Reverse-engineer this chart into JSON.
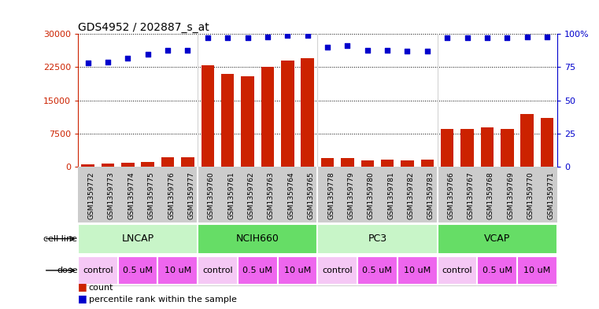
{
  "title": "GDS4952 / 202887_s_at",
  "samples": [
    "GSM1359772",
    "GSM1359773",
    "GSM1359774",
    "GSM1359775",
    "GSM1359776",
    "GSM1359777",
    "GSM1359760",
    "GSM1359761",
    "GSM1359762",
    "GSM1359763",
    "GSM1359764",
    "GSM1359765",
    "GSM1359778",
    "GSM1359779",
    "GSM1359780",
    "GSM1359781",
    "GSM1359782",
    "GSM1359783",
    "GSM1359766",
    "GSM1359767",
    "GSM1359768",
    "GSM1359769",
    "GSM1359770",
    "GSM1359771"
  ],
  "counts": [
    500,
    700,
    1000,
    1100,
    2200,
    2200,
    23000,
    21000,
    20500,
    22500,
    24000,
    24500,
    2000,
    2000,
    1500,
    1600,
    1400,
    1700,
    8500,
    8500,
    9000,
    8500,
    12000,
    11000
  ],
  "percentile_ranks": [
    78,
    79,
    82,
    85,
    88,
    88,
    97,
    97,
    97,
    98,
    99,
    99,
    90,
    91,
    88,
    88,
    87,
    87,
    97,
    97,
    97,
    97,
    98,
    98
  ],
  "cell_lines": [
    {
      "label": "LNCAP",
      "start": 0,
      "end": 6,
      "color": "#c8f5c8"
    },
    {
      "label": "NCIH660",
      "start": 6,
      "end": 12,
      "color": "#66dd66"
    },
    {
      "label": "PC3",
      "start": 12,
      "end": 18,
      "color": "#c8f5c8"
    },
    {
      "label": "VCAP",
      "start": 18,
      "end": 24,
      "color": "#66dd66"
    }
  ],
  "doses": [
    {
      "label": "control",
      "start": 0,
      "end": 2,
      "color": "#f5c8f5"
    },
    {
      "label": "0.5 uM",
      "start": 2,
      "end": 4,
      "color": "#ee66ee"
    },
    {
      "label": "10 uM",
      "start": 4,
      "end": 6,
      "color": "#ee66ee"
    },
    {
      "label": "control",
      "start": 6,
      "end": 8,
      "color": "#f5c8f5"
    },
    {
      "label": "0.5 uM",
      "start": 8,
      "end": 10,
      "color": "#ee66ee"
    },
    {
      "label": "10 uM",
      "start": 10,
      "end": 12,
      "color": "#ee66ee"
    },
    {
      "label": "control",
      "start": 12,
      "end": 14,
      "color": "#f5c8f5"
    },
    {
      "label": "0.5 uM",
      "start": 14,
      "end": 16,
      "color": "#ee66ee"
    },
    {
      "label": "10 uM",
      "start": 16,
      "end": 18,
      "color": "#ee66ee"
    },
    {
      "label": "control",
      "start": 18,
      "end": 20,
      "color": "#f5c8f5"
    },
    {
      "label": "0.5 uM",
      "start": 20,
      "end": 22,
      "color": "#ee66ee"
    },
    {
      "label": "10 uM",
      "start": 22,
      "end": 24,
      "color": "#ee66ee"
    }
  ],
  "bar_color": "#cc2200",
  "dot_color": "#0000cc",
  "ylim_left": [
    0,
    30000
  ],
  "ylim_right": [
    0,
    100
  ],
  "yticks_left": [
    0,
    7500,
    15000,
    22500,
    30000
  ],
  "yticks_right": [
    0,
    25,
    50,
    75,
    100
  ],
  "bg_color": "white",
  "title_color": "black",
  "left_axis_color": "#cc2200",
  "right_axis_color": "#0000cc",
  "sample_bg_color": "#cccccc",
  "n_samples": 24
}
